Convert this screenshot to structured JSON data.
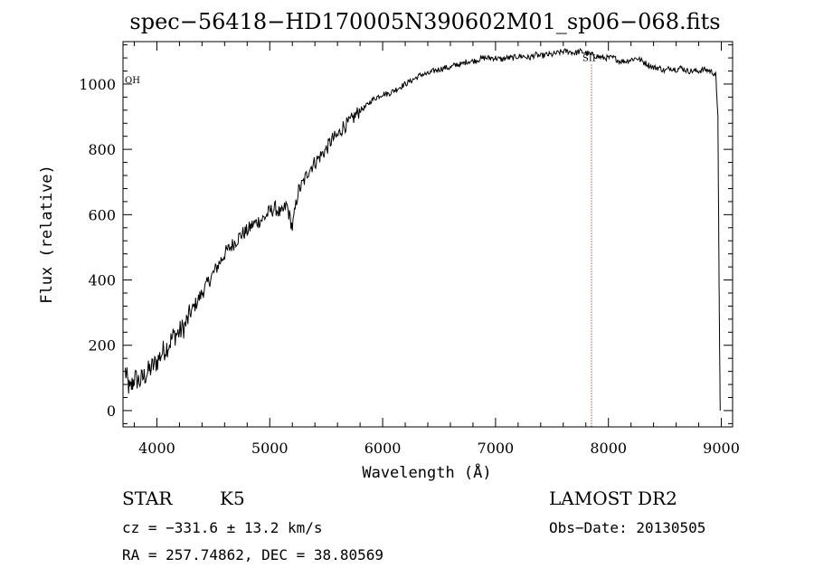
{
  "chart_data": {
    "type": "line",
    "title": "spec−56418−HD170005N390602M01_sp06−068.fits",
    "xlabel": "Wavelength (Å)",
    "ylabel": "Flux (relative)",
    "xlim": [
      3700,
      9100
    ],
    "ylim": [
      -50,
      1130
    ],
    "xticks": [
      4000,
      5000,
      6000,
      7000,
      8000,
      9000
    ],
    "yticks": [
      0,
      200,
      400,
      600,
      800,
      1000
    ],
    "xtick_labels": [
      "4000",
      "5000",
      "6000",
      "7000",
      "8000",
      "9000"
    ],
    "ytick_labels": [
      "0",
      "200",
      "400",
      "600",
      "800",
      "1000"
    ],
    "grid": false,
    "legend": "none",
    "line_color": "#000000",
    "series": [
      {
        "x": [
          3720,
          3760,
          3800,
          3850,
          3900,
          3950,
          4000,
          4050,
          4100,
          4150,
          4200,
          4250,
          4300,
          4350,
          4400,
          4450,
          4500,
          4550,
          4600,
          4650,
          4700,
          4750,
          4800,
          4850,
          4900,
          4950,
          5000,
          5050,
          5100,
          5150,
          5200,
          5250,
          5300,
          5350,
          5400,
          5450,
          5500,
          5550,
          5600,
          5650,
          5700,
          5750,
          5800,
          5850,
          5900,
          5950,
          6000,
          6050,
          6100,
          6150,
          6200,
          6250,
          6300,
          6350,
          6400,
          6450,
          6500,
          6550,
          6600,
          6650,
          6700,
          6750,
          6800,
          6850,
          6900,
          6950,
          7000,
          7050,
          7100,
          7150,
          7200,
          7250,
          7300,
          7350,
          7400,
          7450,
          7500,
          7550,
          7600,
          7650,
          7700,
          7750,
          7800,
          7850,
          7900,
          7950,
          8000,
          8050,
          8100,
          8150,
          8200,
          8250,
          8300,
          8350,
          8400,
          8450,
          8500,
          8550,
          8600,
          8650,
          8700,
          8750,
          8800,
          8850,
          8900,
          8950,
          8970,
          8980,
          8990
        ],
        "y": [
          120,
          60,
          100,
          90,
          110,
          130,
          150,
          180,
          200,
          230,
          240,
          260,
          300,
          330,
          360,
          390,
          420,
          450,
          480,
          500,
          520,
          540,
          550,
          570,
          580,
          590,
          610,
          620,
          600,
          630,
          560,
          670,
          700,
          740,
          760,
          780,
          800,
          830,
          840,
          870,
          880,
          900,
          920,
          930,
          950,
          960,
          970,
          970,
          980,
          990,
          1000,
          1010,
          1020,
          1030,
          1030,
          1040,
          1045,
          1050,
          1050,
          1060,
          1060,
          1070,
          1070,
          1075,
          1080,
          1080,
          1080,
          1075,
          1080,
          1080,
          1085,
          1085,
          1080,
          1090,
          1085,
          1090,
          1090,
          1095,
          1100,
          1100,
          1095,
          1100,
          1095,
          1090,
          1085,
          1080,
          1080,
          1080,
          1070,
          1070,
          1075,
          1080,
          1070,
          1060,
          1050,
          1050,
          1040,
          1050,
          1045,
          1050,
          1040,
          1040,
          1040,
          1045,
          1040,
          1030,
          900,
          400,
          0
        ]
      }
    ],
    "annotations": [
      {
        "text": "OH",
        "x": 3700,
        "y": 1000
      },
      {
        "text": "SII",
        "x": 7850,
        "y": 1070,
        "vline": true
      }
    ],
    "footer": {
      "object": "STAR",
      "subclass": "K5",
      "survey": "LAMOST DR2",
      "cz": "cz = −331.6 ± 13.2 km/s",
      "obs_date": "Obs−Date: 20130505",
      "coords": "RA = 257.74862, DEC =  38.80569"
    }
  }
}
